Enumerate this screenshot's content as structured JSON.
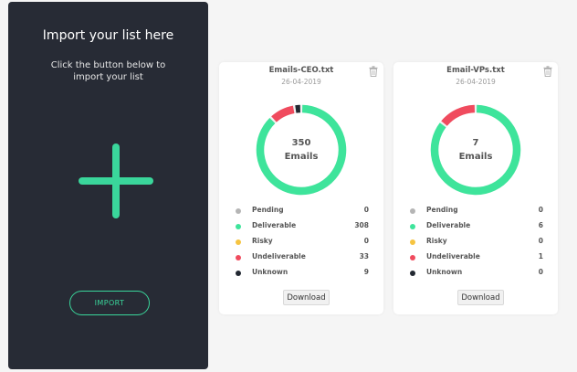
{
  "import_panel": {
    "title": "Import your list here",
    "subtitle_line1": "Click the button below to",
    "subtitle_line2": "import your list",
    "import_label": "IMPORT",
    "accent": "#3ad69b"
  },
  "status_colors": {
    "pending": "#b5b5b5",
    "deliverable": "#3ee49b",
    "risky": "#f6c441",
    "undeliverable": "#f04b5e",
    "unknown": "#222831"
  },
  "cards": [
    {
      "filename": "Emails-CEO.txt",
      "date": "26-04-2019",
      "total": "350",
      "total_label": "Emails",
      "download_label": "Download",
      "stats": [
        {
          "key": "pending",
          "label": "Pending",
          "count": "0"
        },
        {
          "key": "deliverable",
          "label": "Deliverable",
          "count": "308"
        },
        {
          "key": "risky",
          "label": "Risky",
          "count": "0"
        },
        {
          "key": "undeliverable",
          "label": "Undeliverable",
          "count": "33"
        },
        {
          "key": "unknown",
          "label": "Unknown",
          "count": "9"
        }
      ]
    },
    {
      "filename": "Email-VPs.txt",
      "date": "26-04-2019",
      "total": "7",
      "total_label": "Emails",
      "download_label": "Download",
      "stats": [
        {
          "key": "pending",
          "label": "Pending",
          "count": "0"
        },
        {
          "key": "deliverable",
          "label": "Deliverable",
          "count": "6"
        },
        {
          "key": "risky",
          "label": "Risky",
          "count": "0"
        },
        {
          "key": "undeliverable",
          "label": "Undeliverable",
          "count": "1"
        },
        {
          "key": "unknown",
          "label": "Unknown",
          "count": "0"
        }
      ]
    }
  ]
}
